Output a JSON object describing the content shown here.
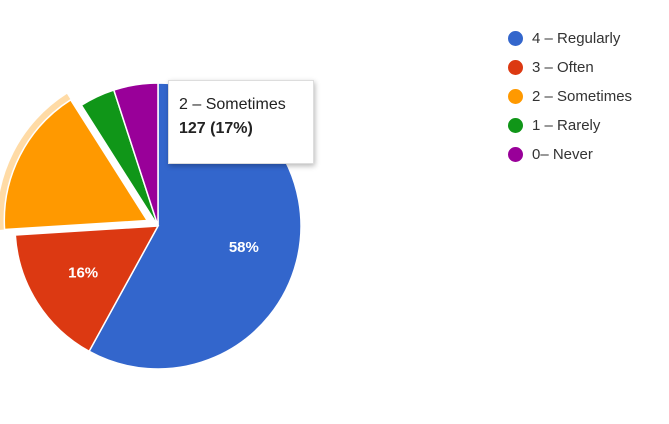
{
  "chart_data": {
    "type": "pie",
    "title": "",
    "categories": [
      "4 – Regularly",
      "3 – Often",
      "2 – Sometimes",
      "1 – Rarely",
      "0– Never"
    ],
    "values": [
      58,
      16,
      17,
      4,
      5
    ],
    "value_unit": "%",
    "colors": [
      "#3366cc",
      "#dc3912",
      "#ff9900",
      "#109618",
      "#990099"
    ],
    "slice_labels": [
      "58%",
      "16%",
      "",
      "",
      ""
    ],
    "highlighted_index": 2,
    "legend": {
      "position": "right"
    },
    "tooltip": {
      "label": "2 – Sometimes",
      "value": "127 (17%)"
    }
  }
}
